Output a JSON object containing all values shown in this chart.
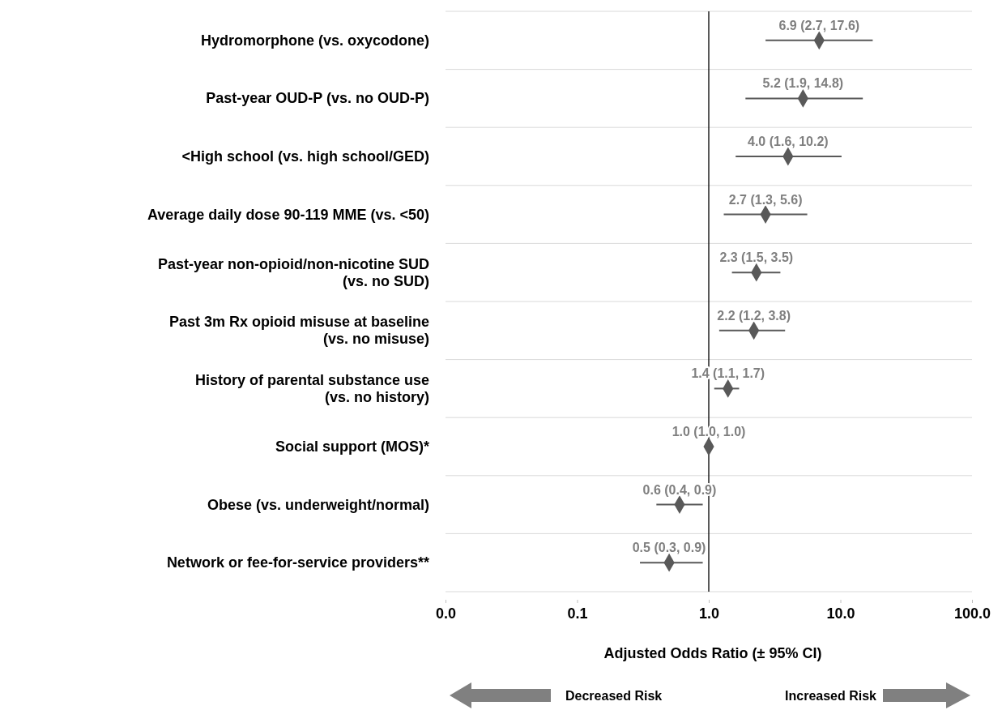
{
  "chart_data": {
    "type": "scatter",
    "orientation": "horizontal",
    "categories": [
      "Hydromorphone (vs. oxycodone)",
      "Past-year OUD-P (vs. no OUD-P)",
      "<High school (vs. high school/GED)",
      "Average daily dose 90-119  MME (vs. <50)",
      "Past-year non-opioid/non-nicotine SUD\n(vs. no SUD)",
      "Past 3m Rx opioid misuse at baseline\n(vs. no misuse)",
      "History of parental substance use\n(vs. no history)",
      "Social support (MOS)*",
      "Obese (vs. underweight/normal)",
      "Network or fee-for-service providers**"
    ],
    "values": [
      6.9,
      5.2,
      4.0,
      2.7,
      2.3,
      2.2,
      1.4,
      1.0,
      0.6,
      0.5
    ],
    "errors": [
      [
        2.7,
        17.6
      ],
      [
        1.9,
        14.8
      ],
      [
        1.6,
        10.2
      ],
      [
        1.3,
        5.6
      ],
      [
        1.5,
        3.5
      ],
      [
        1.2,
        3.8
      ],
      [
        1.1,
        1.7
      ],
      [
        1.0,
        1.0
      ],
      [
        0.4,
        0.9
      ],
      [
        0.3,
        0.9
      ]
    ],
    "value_labels": [
      "6.9 (2.7, 17.6)",
      "5.2 (1.9, 14.8)",
      "4.0 (1.6, 10.2)",
      "2.7 (1.3, 5.6)",
      "2.3 (1.5, 3.5)",
      "2.2 (1.2, 3.8)",
      "1.4 (1.1, 1.7)",
      "1.0 (1.0, 1.0)",
      "0.6 (0.4, 0.9)",
      "0.5 (0.3, 0.9)"
    ],
    "color": "#595959",
    "marker": "diamond",
    "log": "x",
    "grid": "y",
    "xlim": [
      0.01,
      100
    ],
    "xticks": [
      {
        "value": 0.01,
        "label": "0.0"
      },
      {
        "value": 0.1,
        "label": "0.1"
      },
      {
        "value": 1,
        "label": "1.0"
      },
      {
        "value": 10,
        "label": "10.0"
      },
      {
        "value": 100,
        "label": "100.0"
      }
    ],
    "xlabel": "Adjusted Odds Ratio (± 95% CI)",
    "ref_lines": [
      {
        "axis": "x",
        "value": 1,
        "color": "#000000"
      }
    ],
    "annotations": [
      "Decreased Risk",
      "Increased Risk"
    ]
  }
}
